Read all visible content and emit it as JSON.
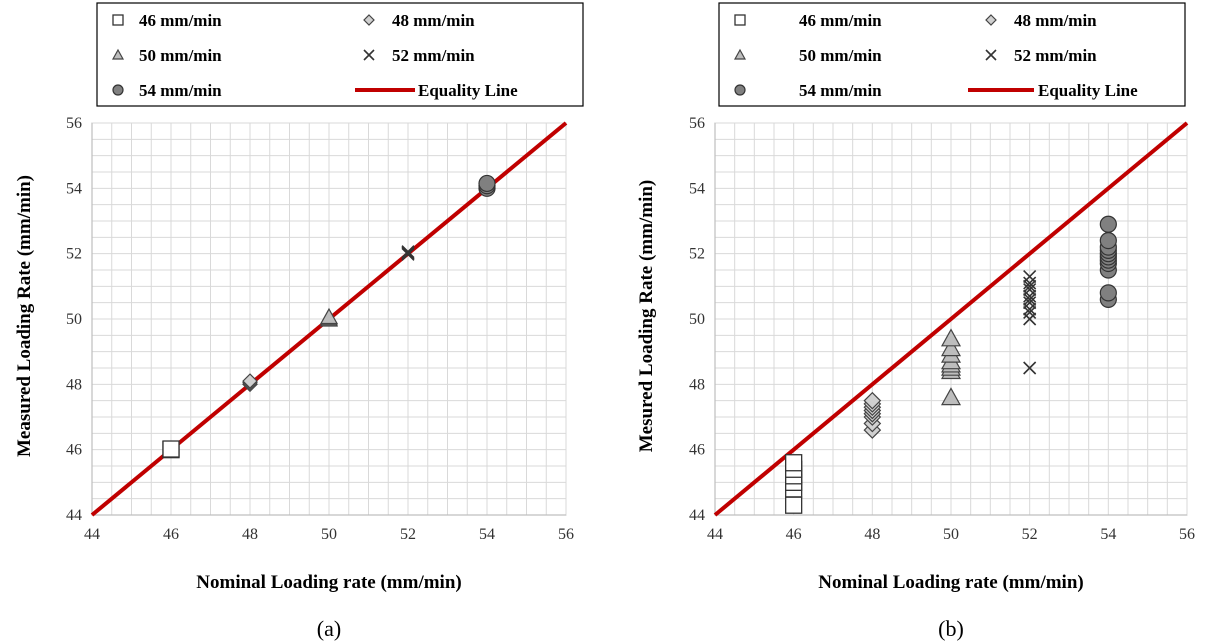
{
  "colors": {
    "equality_line": "#c00000",
    "grid": "#d9d9d9",
    "axis": "#bfbfbf",
    "square_fill": "#ffffff",
    "diamond_fill": "#d0d0d0",
    "triangle_fill": "#bdbdbd",
    "cross_stroke": "#333333",
    "circle_fill": "#808080"
  },
  "chart_data": [
    {
      "panel_caption": "(a)",
      "type": "scatter",
      "xlabel": "Nominal Loading rate (mm/min)",
      "ylabel": "Measured Loading Rate (mm/min)",
      "xlim": [
        44,
        56
      ],
      "ylim": [
        44,
        56
      ],
      "xticks": [
        "44",
        "46",
        "48",
        "50",
        "52",
        "54",
        "56"
      ],
      "yticks": [
        "44",
        "46",
        "48",
        "50",
        "52",
        "54",
        "56"
      ],
      "grid": true,
      "legend_position": "top",
      "legend": [
        {
          "label": "46 mm/min",
          "marker": "square"
        },
        {
          "label": "48 mm/min",
          "marker": "diamond"
        },
        {
          "label": "50 mm/min",
          "marker": "triangle"
        },
        {
          "label": "52 mm/min",
          "marker": "cross"
        },
        {
          "label": "54 mm/min",
          "marker": "circle"
        },
        {
          "label": "Equality Line",
          "marker": "line"
        }
      ],
      "series": [
        {
          "name": "46 mm/min",
          "marker": "square",
          "x": [
            46,
            46
          ],
          "y": [
            46.0,
            46.02
          ]
        },
        {
          "name": "48 mm/min",
          "marker": "diamond",
          "x": [
            48,
            48,
            48
          ],
          "y": [
            48.0,
            48.05,
            48.1
          ]
        },
        {
          "name": "50 mm/min",
          "marker": "triangle",
          "x": [
            50,
            50,
            50
          ],
          "y": [
            49.98,
            50.02,
            50.06
          ]
        },
        {
          "name": "52 mm/min",
          "marker": "cross",
          "x": [
            52,
            52,
            52
          ],
          "y": [
            51.98,
            52.02,
            52.06
          ]
        },
        {
          "name": "54 mm/min",
          "marker": "circle",
          "x": [
            54,
            54,
            54
          ],
          "y": [
            54.0,
            54.08,
            54.15
          ]
        }
      ],
      "equality_line": {
        "x": [
          44,
          56
        ],
        "y": [
          44,
          56
        ]
      }
    },
    {
      "panel_caption": "(b)",
      "type": "scatter",
      "xlabel": "Nominal Loading rate (mm/min)",
      "ylabel": "Mesured Loading Rate (mm/min)",
      "xlim": [
        44,
        56
      ],
      "ylim": [
        44,
        56
      ],
      "xticks": [
        "44",
        "46",
        "48",
        "50",
        "52",
        "54",
        "56"
      ],
      "yticks": [
        "44",
        "46",
        "48",
        "50",
        "52",
        "54",
        "56"
      ],
      "grid": true,
      "legend_position": "top",
      "legend": [
        {
          "label": "46 mm/min",
          "marker": "square"
        },
        {
          "label": "48 mm/min",
          "marker": "diamond"
        },
        {
          "label": "50 mm/min",
          "marker": "triangle"
        },
        {
          "label": "52 mm/min",
          "marker": "cross"
        },
        {
          "label": "54 mm/min",
          "marker": "circle"
        },
        {
          "label": "Equality Line",
          "marker": "line"
        }
      ],
      "series": [
        {
          "name": "46 mm/min",
          "marker": "square",
          "x": [
            46,
            46,
            46,
            46,
            46,
            46
          ],
          "y": [
            44.3,
            44.8,
            45.0,
            45.2,
            45.4,
            45.6
          ]
        },
        {
          "name": "48 mm/min",
          "marker": "diamond",
          "x": [
            48,
            48,
            48,
            48,
            48,
            48,
            48,
            48
          ],
          "y": [
            46.6,
            46.8,
            47.0,
            47.1,
            47.2,
            47.3,
            47.4,
            47.5
          ]
        },
        {
          "name": "50 mm/min",
          "marker": "triangle",
          "x": [
            50,
            50,
            50,
            50,
            50,
            50,
            50,
            50
          ],
          "y": [
            47.6,
            48.4,
            48.5,
            48.6,
            48.7,
            48.9,
            49.1,
            49.4
          ]
        },
        {
          "name": "52 mm/min",
          "marker": "cross",
          "x": [
            52,
            52,
            52,
            52,
            52,
            52,
            52,
            52,
            52,
            52,
            52
          ],
          "y": [
            48.5,
            50.0,
            50.2,
            50.3,
            50.5,
            50.6,
            50.7,
            50.9,
            51.0,
            51.1,
            51.3
          ]
        },
        {
          "name": "54 mm/min",
          "marker": "circle",
          "x": [
            54,
            54,
            54,
            54,
            54,
            54,
            54,
            54,
            54,
            54,
            54
          ],
          "y": [
            50.6,
            50.8,
            51.5,
            51.7,
            51.8,
            51.9,
            52.0,
            52.1,
            52.2,
            52.4,
            52.9
          ]
        }
      ],
      "equality_line": {
        "x": [
          44,
          56
        ],
        "y": [
          44,
          56
        ]
      }
    }
  ]
}
